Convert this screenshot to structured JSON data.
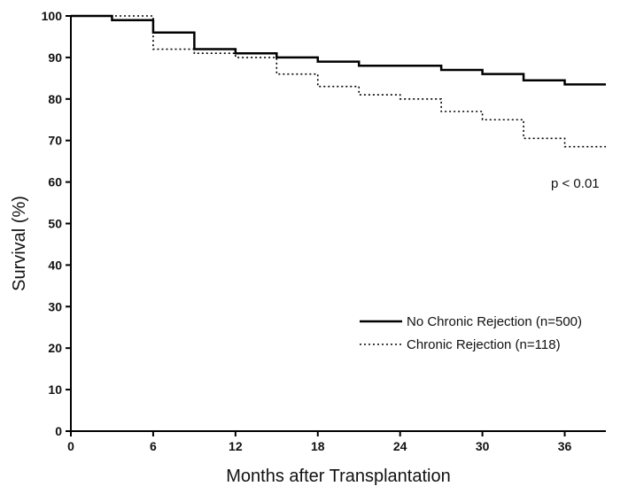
{
  "chart_data": {
    "type": "line",
    "xlabel": "Months after Transplantation",
    "ylabel": "Survival (%)",
    "xlim": [
      0,
      39
    ],
    "ylim": [
      0,
      100
    ],
    "xticks": [
      "0",
      "6",
      "12",
      "18",
      "24",
      "30",
      "36"
    ],
    "yticks": [
      "0",
      "10",
      "20",
      "30",
      "40",
      "50",
      "60",
      "70",
      "80",
      "90",
      "100"
    ],
    "annotation": "p < 0.01",
    "legend_position": "lower-right",
    "grid": false,
    "series": [
      {
        "name": "No Chronic Rejection (n=500)",
        "style": "solid",
        "step": true,
        "x": [
          0,
          3,
          6,
          9,
          12,
          15,
          18,
          21,
          24,
          27,
          30,
          33,
          36,
          39
        ],
        "y": [
          100,
          99,
          96,
          92,
          91,
          90,
          89,
          88,
          88,
          87,
          86,
          84.5,
          83.5,
          83.5
        ]
      },
      {
        "name": "Chronic Rejection (n=118)",
        "style": "dotted",
        "step": true,
        "x": [
          0,
          6,
          9,
          12,
          15,
          18,
          21,
          24,
          27,
          30,
          33,
          36,
          39
        ],
        "y": [
          100,
          92,
          91,
          90,
          86,
          83,
          81,
          80,
          77,
          75,
          70.5,
          68.5,
          68.5
        ]
      }
    ]
  }
}
